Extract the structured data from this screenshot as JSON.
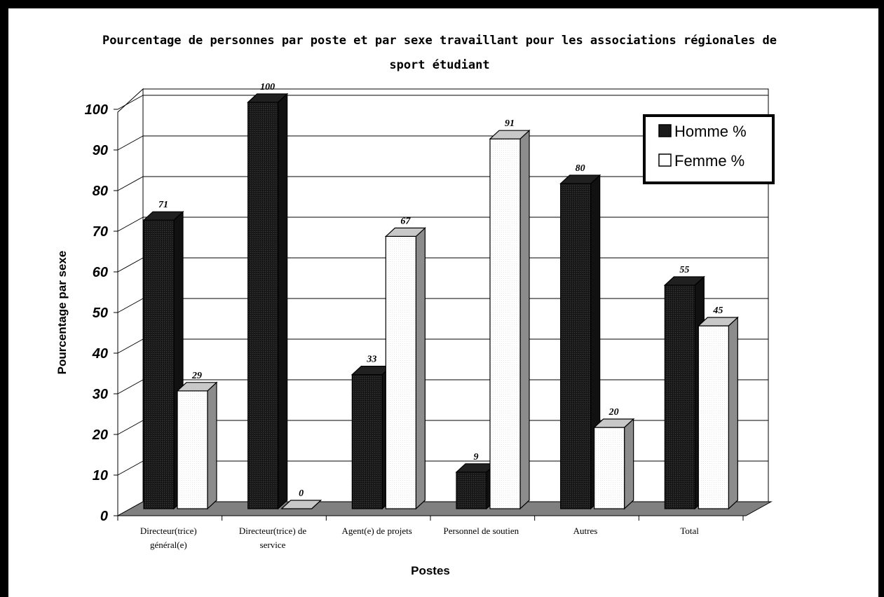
{
  "chart_data": {
    "type": "bar",
    "title": "Pourcentage de personnes par poste et par sexe travaillant pour les associations régionales de sport étudiant",
    "title_lines": [
      "Pourcentage de personnes par poste et par sexe travaillant pour les associations régionales de",
      "sport étudiant"
    ],
    "xlabel": "Postes",
    "ylabel": "Pourcentage  par sexe",
    "ylim": [
      0,
      100
    ],
    "yticks": [
      "0",
      "10",
      "20",
      "30",
      "40",
      "50",
      "60",
      "70",
      "80",
      "90",
      "100"
    ],
    "categories": [
      "Directeur(trice) général(e)",
      "Directeur(trice) de service",
      "Agent(e) de projets",
      "Personnel de soutien",
      "Autres",
      "Total"
    ],
    "category_lines": [
      [
        "Directeur(trice)",
        "général(e)"
      ],
      [
        "Directeur(trice) de",
        "service"
      ],
      [
        "Agent(e) de projets"
      ],
      [
        "Personnel de soutien"
      ],
      [
        "Autres"
      ],
      [
        "Total"
      ]
    ],
    "series": [
      {
        "name": "Homme %",
        "values": [
          71,
          100,
          33,
          9,
          80,
          55
        ],
        "labels": [
          "71",
          "100",
          "33",
          "9",
          "80",
          "55"
        ]
      },
      {
        "name": "Femme %",
        "values": [
          29,
          0,
          67,
          91,
          20,
          45
        ],
        "labels": [
          "29",
          "0",
          "67",
          "91",
          "20",
          "45"
        ]
      }
    ],
    "grid": true,
    "legend_position": "top-right",
    "colors": {
      "homme": "#1a1a1a",
      "femme": "#ffffff",
      "floor": "#808080"
    }
  }
}
